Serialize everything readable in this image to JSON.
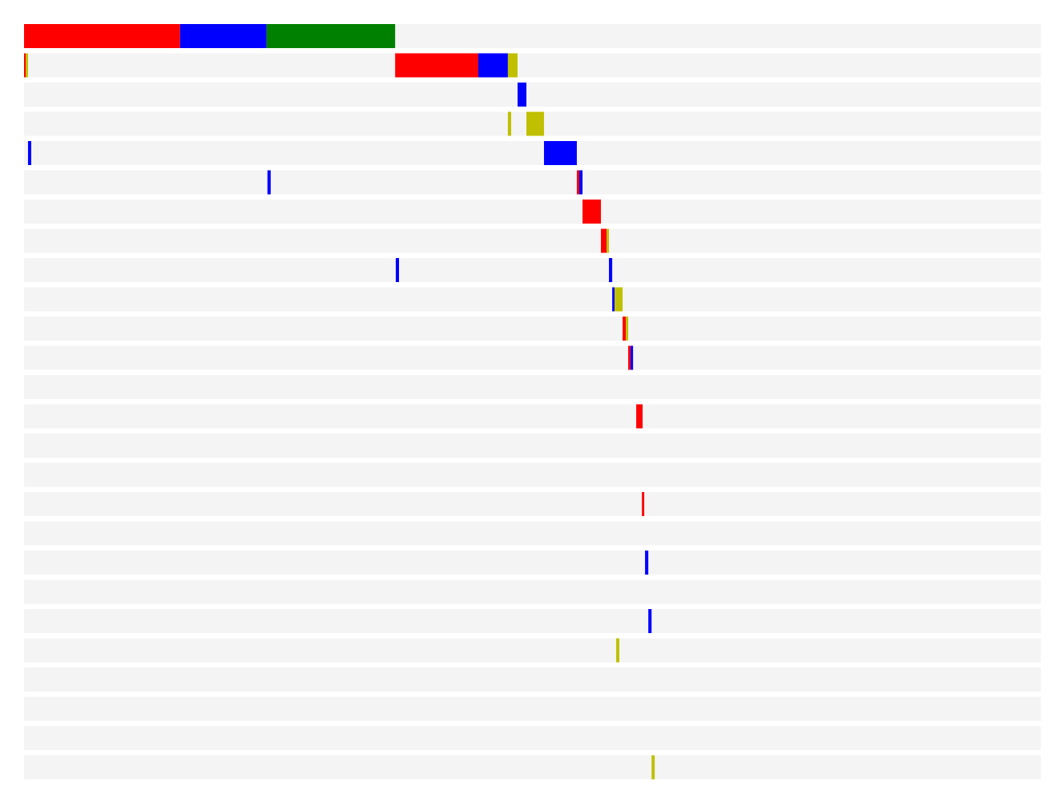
{
  "chart_data": {
    "type": "timeline",
    "xlim": [
      0,
      1000
    ],
    "grid": false,
    "legend": "none",
    "colors": {
      "lane_background": "#f4f4f4",
      "red": "#ff0000",
      "blue": "#0000ff",
      "green": "#008000",
      "olive": "#c0c000"
    },
    "lanes": [
      {
        "segments": [
          {
            "start": 0,
            "end": 153.5,
            "color": "red"
          },
          {
            "start": 153.5,
            "end": 238.5,
            "color": "blue"
          },
          {
            "start": 238.5,
            "end": 365,
            "color": "green"
          }
        ]
      },
      {
        "segments": [
          {
            "start": 0,
            "end": 1.6,
            "color": "red"
          },
          {
            "start": 1.6,
            "end": 3.9,
            "color": "olive"
          },
          {
            "start": 365,
            "end": 446.8,
            "color": "red"
          },
          {
            "start": 446.8,
            "end": 475.9,
            "color": "blue"
          },
          {
            "start": 475.9,
            "end": 485.4,
            "color": "olive"
          }
        ]
      },
      {
        "segments": [
          {
            "start": 485.4,
            "end": 494.1,
            "color": "blue"
          }
        ]
      },
      {
        "segments": [
          {
            "start": 475.9,
            "end": 479.1,
            "color": "olive"
          },
          {
            "start": 494.1,
            "end": 511.4,
            "color": "olive"
          }
        ]
      },
      {
        "segments": [
          {
            "start": 3.9,
            "end": 7.1,
            "color": "blue"
          },
          {
            "start": 511.4,
            "end": 543.7,
            "color": "blue"
          }
        ]
      },
      {
        "segments": [
          {
            "start": 239.4,
            "end": 242.6,
            "color": "blue"
          },
          {
            "start": 543.7,
            "end": 546.1,
            "color": "red"
          },
          {
            "start": 546.1,
            "end": 549.3,
            "color": "blue"
          }
        ]
      },
      {
        "segments": [
          {
            "start": 549.3,
            "end": 567.4,
            "color": "red"
          }
        ]
      },
      {
        "segments": [
          {
            "start": 567.4,
            "end": 573,
            "color": "red"
          },
          {
            "start": 573,
            "end": 575.3,
            "color": "olive"
          }
        ]
      },
      {
        "segments": [
          {
            "start": 365.6,
            "end": 368.8,
            "color": "blue"
          },
          {
            "start": 575.3,
            "end": 578.5,
            "color": "blue"
          }
        ]
      },
      {
        "segments": [
          {
            "start": 578.5,
            "end": 580.8,
            "color": "blue"
          },
          {
            "start": 580.8,
            "end": 588.7,
            "color": "olive"
          }
        ]
      },
      {
        "segments": [
          {
            "start": 588.7,
            "end": 591.8,
            "color": "red"
          },
          {
            "start": 591.8,
            "end": 594.2,
            "color": "olive"
          }
        ]
      },
      {
        "segments": [
          {
            "start": 594.2,
            "end": 596.6,
            "color": "red"
          },
          {
            "start": 596.6,
            "end": 599,
            "color": "blue"
          }
        ]
      },
      {
        "segments": []
      },
      {
        "segments": [
          {
            "start": 602.1,
            "end": 608.4,
            "color": "red"
          }
        ]
      },
      {
        "segments": []
      },
      {
        "segments": []
      },
      {
        "segments": [
          {
            "start": 607.7,
            "end": 610,
            "color": "red"
          }
        ]
      },
      {
        "segments": []
      },
      {
        "segments": [
          {
            "start": 610.8,
            "end": 614,
            "color": "blue"
          }
        ]
      },
      {
        "segments": []
      },
      {
        "segments": [
          {
            "start": 614,
            "end": 617.2,
            "color": "blue"
          }
        ]
      },
      {
        "segments": [
          {
            "start": 582.4,
            "end": 585.5,
            "color": "olive"
          }
        ]
      },
      {
        "segments": []
      },
      {
        "segments": []
      },
      {
        "segments": []
      },
      {
        "segments": [
          {
            "start": 617.2,
            "end": 620.3,
            "color": "olive"
          }
        ]
      }
    ]
  }
}
